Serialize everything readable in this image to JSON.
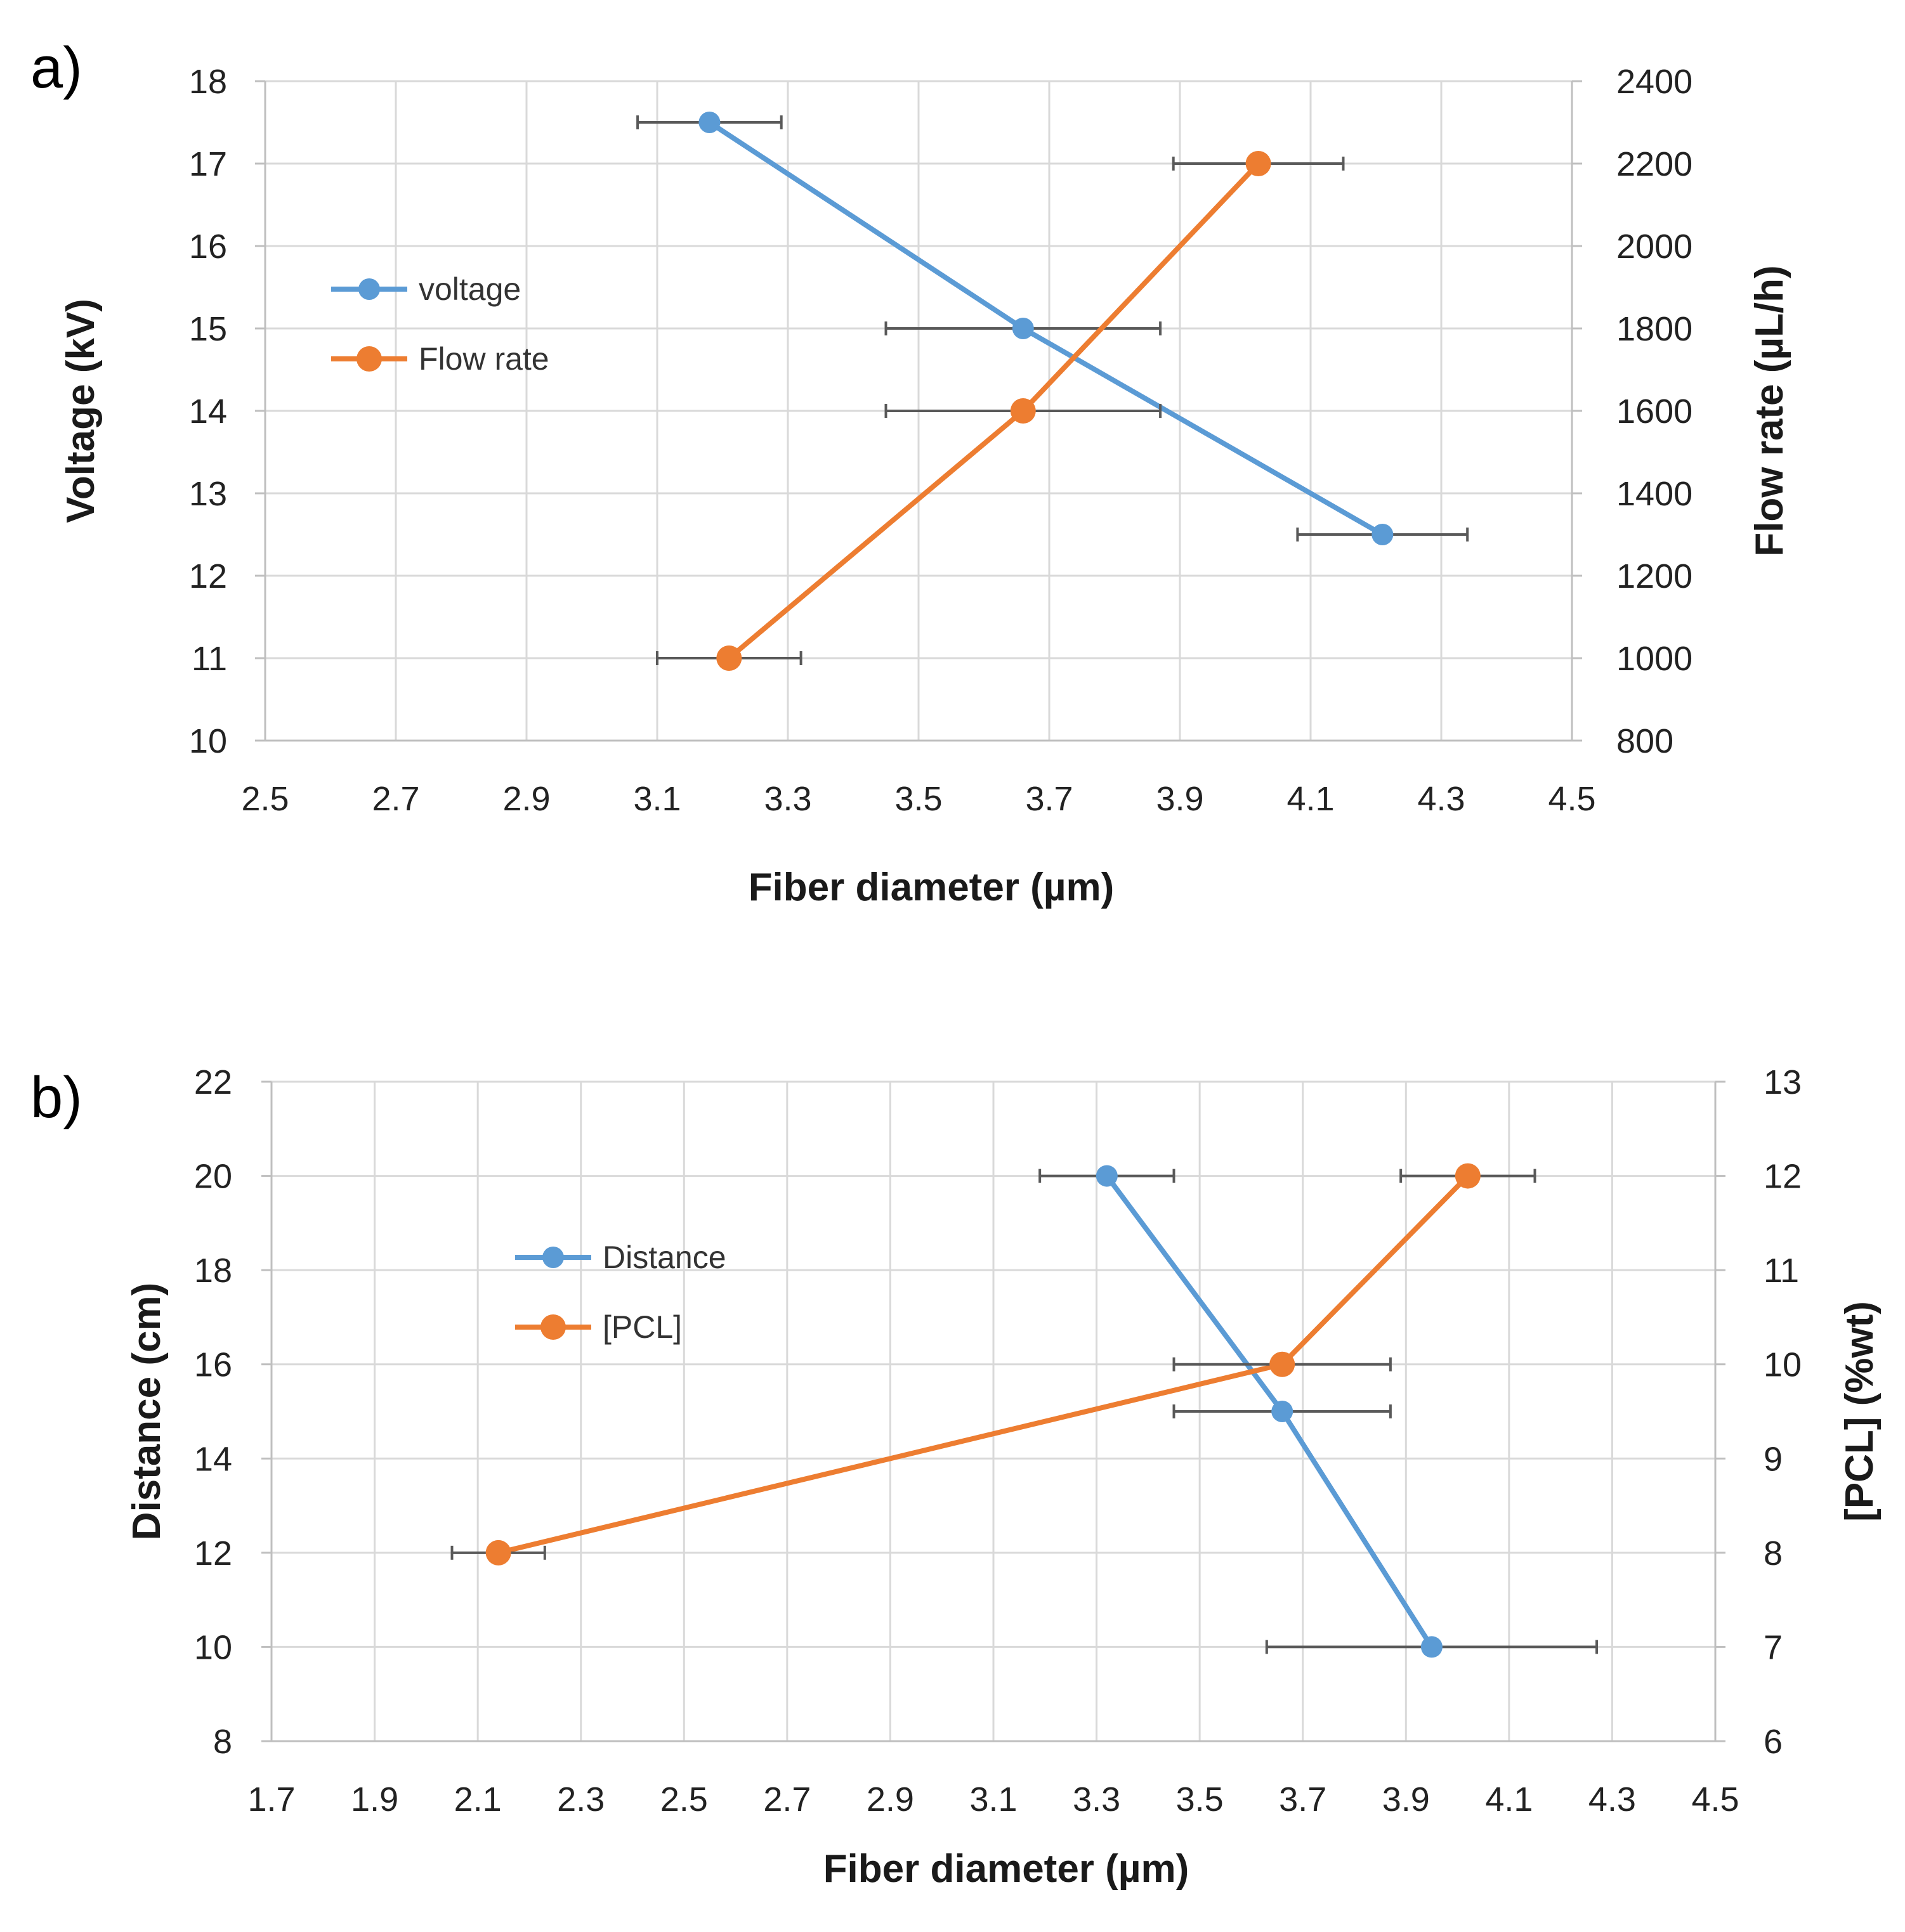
{
  "chart_data": [
    {
      "type": "scatter",
      "panel_label": "a)",
      "xlabel": "Fiber diameter (µm)",
      "ylabel": "Voltage (kV)",
      "y2label": "Flow rate (µL/h)",
      "xlim": [
        2.5,
        4.5
      ],
      "ylim": [
        10,
        18
      ],
      "y2lim": [
        800,
        2400
      ],
      "xticks": [
        "2.5",
        "2.7",
        "2.9",
        "3.1",
        "3.3",
        "3.5",
        "3.7",
        "3.9",
        "4.1",
        "4.3",
        "4.5"
      ],
      "yticks": [
        "10",
        "11",
        "12",
        "13",
        "14",
        "15",
        "16",
        "17",
        "18"
      ],
      "y2ticks": [
        "800",
        "1000",
        "1200",
        "1400",
        "1600",
        "1800",
        "2000",
        "2200",
        "2400"
      ],
      "grid": true,
      "legend": "left",
      "series": [
        {
          "name": "voltage",
          "color": "#5B9BD5",
          "axis": "left",
          "x": [
            3.18,
            3.66,
            4.21
          ],
          "y": [
            17.5,
            15,
            12.5
          ],
          "xerr": [
            0.11,
            0.21,
            0.13
          ]
        },
        {
          "name": "Flow rate",
          "color": "#ED7D31",
          "axis": "right",
          "x": [
            3.21,
            3.66,
            4.02
          ],
          "y": [
            1000,
            1600,
            2200
          ],
          "xerr": [
            0.11,
            0.21,
            0.13
          ]
        }
      ]
    },
    {
      "type": "scatter",
      "panel_label": "b)",
      "xlabel": "Fiber diameter (µm)",
      "ylabel": "Distance (cm)",
      "y2label": "[PCL] (%wt)",
      "xlim": [
        1.7,
        4.5
      ],
      "ylim": [
        8,
        22
      ],
      "y2lim": [
        6,
        13
      ],
      "xticks": [
        "1.7",
        "1.9",
        "2.1",
        "2.3",
        "2.5",
        "2.7",
        "2.9",
        "3.1",
        "3.3",
        "3.5",
        "3.7",
        "3.9",
        "4.1",
        "4.3",
        "4.5"
      ],
      "yticks": [
        "8",
        "10",
        "12",
        "14",
        "16",
        "18",
        "20",
        "22"
      ],
      "y2ticks": [
        "6",
        "7",
        "8",
        "9",
        "10",
        "11",
        "12",
        "13"
      ],
      "grid": true,
      "legend": "center-left",
      "series": [
        {
          "name": "Distance",
          "color": "#5B9BD5",
          "axis": "left",
          "x": [
            3.32,
            3.66,
            3.95
          ],
          "y": [
            20,
            15,
            10
          ],
          "xerr": [
            0.13,
            0.21,
            0.32
          ]
        },
        {
          "name": "[PCL]",
          "color": "#ED7D31",
          "axis": "right",
          "x": [
            2.14,
            3.66,
            4.02
          ],
          "y": [
            8,
            10,
            12
          ],
          "xerr": [
            0.09,
            0.21,
            0.13
          ]
        }
      ]
    }
  ]
}
